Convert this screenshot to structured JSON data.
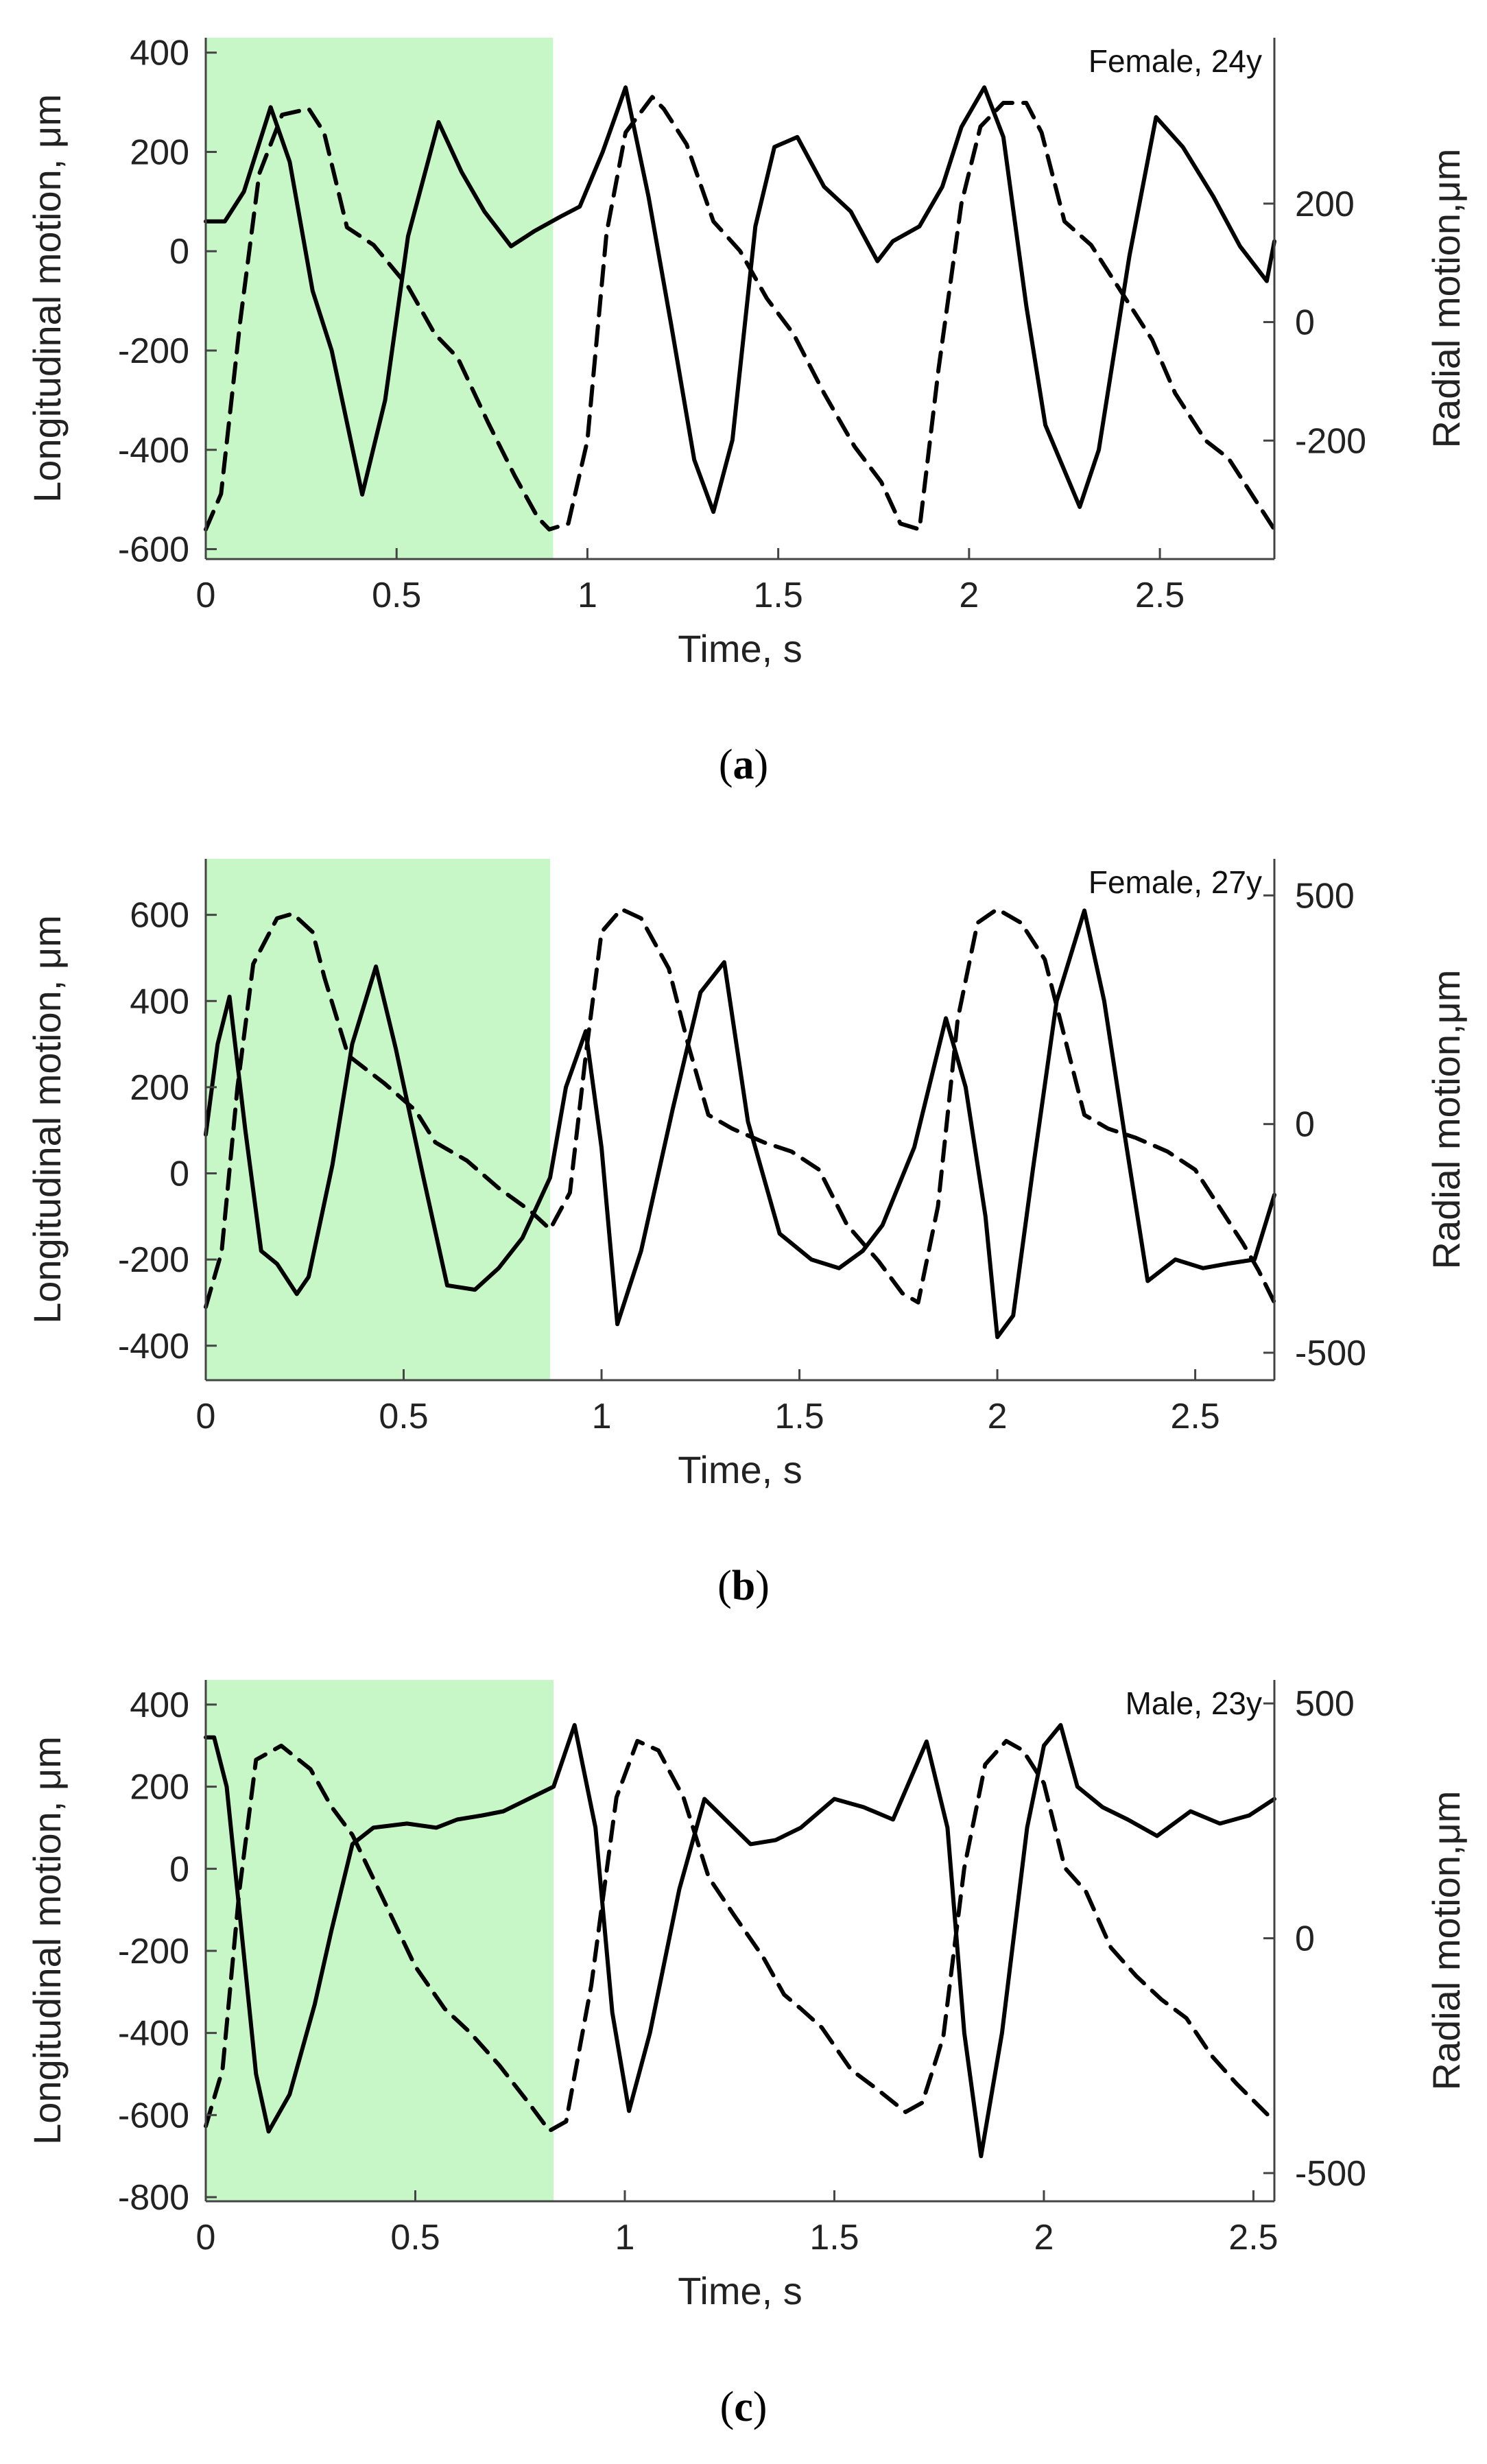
{
  "colors": {
    "highlight": "#c7f7c7",
    "longitudinal_line": "#000000",
    "radial_line": "#000000",
    "axis": "#444444"
  },
  "chart_data": [
    {
      "type": "line",
      "panel": "a",
      "caption_letter": "a",
      "annotation": "Female, 24y",
      "xlabel": "Time, s",
      "ylabel_left": "Longitudinal motion, μm",
      "ylabel_right": "Radial motion,μm",
      "xlim": [
        0,
        2.8
      ],
      "ylim_left": [
        -620,
        430
      ],
      "ylim_right": [
        -400,
        480
      ],
      "xticks": [
        0,
        0.5,
        1,
        1.5,
        2,
        2.5
      ],
      "xtick_labels": [
        "0",
        "0.5",
        "1",
        "1.5",
        "2",
        "2.5"
      ],
      "yticks_left": [
        400,
        200,
        0,
        -200,
        -400,
        -600
      ],
      "yticks_left_labels": [
        "400",
        "200",
        "0",
        "-200",
        "-400",
        "-600"
      ],
      "yticks_right": [
        200,
        0,
        -200
      ],
      "yticks_right_labels": [
        "200",
        "0",
        "-200"
      ],
      "highlight_range": [
        0,
        0.91
      ],
      "series": [
        {
          "name": "Longitudinal motion",
          "axis": "left",
          "style": "solid",
          "x": [
            0,
            0.05,
            0.1,
            0.17,
            0.22,
            0.28,
            0.33,
            0.41,
            0.47,
            0.53,
            0.61,
            0.67,
            0.73,
            0.8,
            0.86,
            0.93,
            0.98,
            1.04,
            1.1,
            1.16,
            1.22,
            1.28,
            1.33,
            1.38,
            1.44,
            1.49,
            1.55,
            1.62,
            1.69,
            1.76,
            1.8,
            1.87,
            1.93,
            1.98,
            2.04,
            2.09,
            2.15,
            2.2,
            2.29,
            2.34,
            2.42,
            2.49,
            2.56,
            2.64,
            2.71,
            2.78,
            2.8
          ],
          "y": [
            60,
            60,
            120,
            290,
            180,
            -80,
            -200,
            -490,
            -300,
            30,
            260,
            160,
            80,
            10,
            40,
            70,
            90,
            200,
            330,
            110,
            -150,
            -420,
            -525,
            -380,
            50,
            210,
            230,
            130,
            80,
            -20,
            20,
            50,
            130,
            250,
            330,
            230,
            -110,
            -350,
            -515,
            -400,
            -10,
            270,
            210,
            110,
            10,
            -60,
            20
          ]
        },
        {
          "name": "Radial motion",
          "axis": "right",
          "style": "dashed",
          "x": [
            0,
            0.04,
            0.09,
            0.14,
            0.2,
            0.27,
            0.31,
            0.37,
            0.44,
            0.53,
            0.6,
            0.66,
            0.74,
            0.81,
            0.87,
            0.9,
            0.95,
            1.0,
            1.05,
            1.1,
            1.17,
            1.2,
            1.26,
            1.33,
            1.4,
            1.47,
            1.54,
            1.62,
            1.7,
            1.77,
            1.82,
            1.87,
            1.92,
            1.98,
            2.03,
            2.09,
            2.15,
            2.19,
            2.25,
            2.32,
            2.4,
            2.48,
            2.54,
            2.62,
            2.68,
            2.74,
            2.8
          ],
          "y": [
            -350,
            -290,
            0,
            250,
            350,
            360,
            320,
            160,
            130,
            60,
            -20,
            -60,
            -170,
            -260,
            -330,
            -350,
            -340,
            -200,
            150,
            320,
            380,
            360,
            300,
            170,
            120,
            40,
            -20,
            -120,
            -210,
            -270,
            -340,
            -350,
            -80,
            200,
            330,
            370,
            370,
            320,
            170,
            130,
            50,
            -30,
            -120,
            -200,
            -230,
            -290,
            -350
          ]
        }
      ]
    },
    {
      "type": "line",
      "panel": "b",
      "caption_letter": "b",
      "annotation": "Female, 27y",
      "xlabel": "Time, s",
      "ylabel_left": "Longitudinal motion, μm",
      "ylabel_right": "Radial motion,μm",
      "xlim": [
        0,
        2.7
      ],
      "ylim_left": [
        -480,
        730
      ],
      "ylim_right": [
        -560,
        580
      ],
      "xticks": [
        0,
        0.5,
        1,
        1.5,
        2,
        2.5
      ],
      "xtick_labels": [
        "0",
        "0.5",
        "1",
        "1.5",
        "2",
        "2.5"
      ],
      "yticks_left": [
        600,
        400,
        200,
        0,
        -200,
        -400
      ],
      "yticks_left_labels": [
        "600",
        "400",
        "200",
        "0",
        "-200",
        "-400"
      ],
      "yticks_right": [
        500,
        0,
        -500
      ],
      "yticks_right_labels": [
        "500",
        "0",
        "-500"
      ],
      "highlight_range": [
        0,
        0.87
      ],
      "series": [
        {
          "name": "Longitudinal motion",
          "axis": "left",
          "style": "solid",
          "x": [
            0,
            0.03,
            0.06,
            0.1,
            0.14,
            0.18,
            0.23,
            0.26,
            0.32,
            0.37,
            0.43,
            0.48,
            0.55,
            0.61,
            0.68,
            0.74,
            0.8,
            0.87,
            0.91,
            0.96,
            1.0,
            1.04,
            1.1,
            1.18,
            1.25,
            1.31,
            1.37,
            1.45,
            1.53,
            1.6,
            1.66,
            1.71,
            1.79,
            1.87,
            1.92,
            1.97,
            2.0,
            2.04,
            2.09,
            2.15,
            2.22,
            2.27,
            2.32,
            2.38,
            2.45,
            2.52,
            2.58,
            2.65,
            2.7
          ],
          "y": [
            90,
            300,
            410,
            100,
            -180,
            -210,
            -280,
            -240,
            20,
            300,
            480,
            290,
            -10,
            -260,
            -270,
            -220,
            -150,
            -10,
            200,
            330,
            60,
            -350,
            -180,
            150,
            420,
            490,
            120,
            -140,
            -200,
            -220,
            -180,
            -120,
            60,
            360,
            200,
            -100,
            -380,
            -330,
            10,
            400,
            610,
            400,
            100,
            -250,
            -200,
            -220,
            -210,
            -200,
            -50
          ]
        },
        {
          "name": "Radial motion",
          "axis": "right",
          "style": "dashed",
          "x": [
            0,
            0.04,
            0.08,
            0.12,
            0.18,
            0.22,
            0.27,
            0.3,
            0.36,
            0.45,
            0.53,
            0.58,
            0.66,
            0.74,
            0.82,
            0.87,
            0.92,
            0.96,
            1.0,
            1.05,
            1.1,
            1.17,
            1.22,
            1.27,
            1.33,
            1.41,
            1.48,
            1.55,
            1.62,
            1.7,
            1.76,
            1.8,
            1.85,
            1.9,
            1.95,
            2.0,
            2.06,
            2.12,
            2.17,
            2.22,
            2.28,
            2.35,
            2.43,
            2.5,
            2.56,
            2.62,
            2.66,
            2.7
          ],
          "y": [
            -400,
            -280,
            80,
            350,
            450,
            460,
            420,
            320,
            150,
            90,
            30,
            -40,
            -80,
            -140,
            -190,
            -230,
            -150,
            150,
            420,
            470,
            450,
            340,
            170,
            20,
            -10,
            -40,
            -60,
            -100,
            -220,
            -300,
            -370,
            -390,
            -180,
            230,
            440,
            470,
            440,
            360,
            190,
            20,
            -10,
            -30,
            -60,
            -100,
            -180,
            -260,
            -320,
            -390
          ]
        }
      ]
    },
    {
      "type": "line",
      "panel": "c",
      "caption_letter": "c",
      "annotation": "Male, 23y",
      "xlabel": "Time, s",
      "ylabel_left": "Longitudinal motion, μm",
      "ylabel_right": "Radial motion,μm",
      "xlim": [
        0,
        2.55
      ],
      "ylim_left": [
        -810,
        460
      ],
      "ylim_right": [
        -560,
        550
      ],
      "xticks": [
        0,
        0.5,
        1,
        1.5,
        2,
        2.5
      ],
      "xtick_labels": [
        "0",
        "0.5",
        "1",
        "1.5",
        "2",
        "2.5"
      ],
      "yticks_left": [
        400,
        200,
        0,
        -200,
        -400,
        -600,
        -800
      ],
      "yticks_left_labels": [
        "400",
        "200",
        "0",
        "-200",
        "-400",
        "-600",
        "-800"
      ],
      "yticks_right": [
        500,
        0,
        -500
      ],
      "yticks_right_labels": [
        "500",
        "0",
        "-500"
      ],
      "highlight_range": [
        0,
        0.83
      ],
      "series": [
        {
          "name": "Longitudinal motion",
          "axis": "left",
          "style": "solid",
          "x": [
            0,
            0.02,
            0.05,
            0.09,
            0.12,
            0.15,
            0.2,
            0.26,
            0.3,
            0.35,
            0.4,
            0.48,
            0.55,
            0.6,
            0.66,
            0.71,
            0.77,
            0.83,
            0.88,
            0.93,
            0.97,
            1.01,
            1.06,
            1.13,
            1.19,
            1.24,
            1.3,
            1.36,
            1.42,
            1.5,
            1.57,
            1.64,
            1.72,
            1.77,
            1.81,
            1.85,
            1.9,
            1.96,
            2.0,
            2.04,
            2.08,
            2.14,
            2.2,
            2.27,
            2.35,
            2.42,
            2.49,
            2.55
          ],
          "y": [
            320,
            320,
            200,
            -200,
            -500,
            -640,
            -550,
            -330,
            -150,
            60,
            100,
            110,
            100,
            120,
            130,
            140,
            170,
            200,
            350,
            100,
            -350,
            -590,
            -400,
            -50,
            170,
            120,
            60,
            70,
            100,
            170,
            150,
            120,
            310,
            100,
            -400,
            -700,
            -400,
            100,
            300,
            350,
            200,
            150,
            120,
            80,
            140,
            110,
            130,
            170
          ]
        },
        {
          "name": "Radial motion",
          "axis": "right",
          "style": "dashed",
          "x": [
            0,
            0.04,
            0.08,
            0.12,
            0.18,
            0.25,
            0.3,
            0.35,
            0.42,
            0.5,
            0.57,
            0.63,
            0.7,
            0.77,
            0.82,
            0.86,
            0.92,
            0.98,
            1.03,
            1.08,
            1.14,
            1.2,
            1.26,
            1.33,
            1.38,
            1.42,
            1.47,
            1.54,
            1.6,
            1.67,
            1.71,
            1.76,
            1.81,
            1.86,
            1.91,
            1.95,
            2.0,
            2.05,
            2.1,
            2.16,
            2.22,
            2.28,
            2.34,
            2.4,
            2.46,
            2.55
          ],
          "y": [
            -400,
            -280,
            100,
            380,
            410,
            360,
            280,
            220,
            90,
            -60,
            -150,
            -200,
            -270,
            -350,
            -410,
            -390,
            -100,
            300,
            420,
            400,
            300,
            130,
            50,
            -40,
            -120,
            -150,
            -190,
            -280,
            -320,
            -370,
            -350,
            -210,
            150,
            370,
            420,
            400,
            330,
            150,
            100,
            -20,
            -80,
            -130,
            -170,
            -250,
            -310,
            -390
          ]
        }
      ]
    }
  ]
}
